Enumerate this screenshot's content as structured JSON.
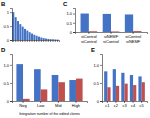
{
  "chart_data": [
    {
      "type": "bar",
      "title": "B",
      "categories": [
        null,
        null,
        null,
        null,
        null,
        null,
        null,
        null,
        null,
        null,
        null,
        null,
        null,
        null,
        null,
        null,
        null,
        null,
        null,
        null
      ],
      "values": [
        1.0,
        0.82,
        0.68,
        0.57,
        0.48,
        0.4,
        0.34,
        0.28,
        0.23,
        0.19,
        0.15,
        0.12,
        0.09,
        0.07,
        0.05,
        0.04,
        0.03,
        0.025,
        0.02,
        0.015
      ],
      "color": "#4472C4",
      "ylim": [
        0,
        1.15
      ],
      "yticks": [
        0,
        0.5,
        1
      ]
    },
    {
      "type": "bar",
      "title": "C",
      "categories": [
        "siControl\nsiControl",
        "siNEMF\nsiControl",
        "siControl\nsiNEMF"
      ],
      "series": [
        {
          "color": "#4472C4",
          "values": [
            1.0,
            0.98,
            0.95
          ]
        },
        {
          "color": "#C0504D",
          "values": [
            0.04,
            0.03,
            0.05
          ]
        }
      ],
      "ylim": [
        0,
        1.3
      ],
      "yticks": [
        0,
        0.5,
        {
          "value": 1.0,
          "label": "1.0"
        }
      ]
    },
    {
      "type": "bar",
      "title": "D",
      "categories": [
        "Neg",
        "Low",
        "Mid",
        "High"
      ],
      "series": [
        {
          "color": "#4472C4",
          "values": [
            1.02,
            0.88,
            0.72,
            0.58
          ]
        },
        {
          "color": "#C0504D",
          "values": [
            0.06,
            0.32,
            0.52,
            0.62
          ]
        }
      ],
      "xlabel": "Integration number of the edited clones",
      "ylim": [
        0,
        1.3
      ],
      "yticks": [
        0,
        0.5,
        {
          "value": 1.0,
          "label": "1.0"
        }
      ]
    },
    {
      "type": "bar",
      "title": "E",
      "categories": [
        "c1",
        "c2",
        "c3",
        "c4",
        "c5"
      ],
      "series": [
        {
          "color": "#4472C4",
          "values": [
            0.82,
            0.88,
            0.78,
            0.72,
            0.68
          ]
        },
        {
          "color": "#C0504D",
          "values": [
            0.38,
            0.42,
            0.48,
            0.44,
            0.52
          ]
        }
      ],
      "ylim": [
        0,
        1.3
      ],
      "yticks": [
        0,
        0.5,
        {
          "value": 1.0,
          "label": "1.0"
        }
      ]
    }
  ]
}
